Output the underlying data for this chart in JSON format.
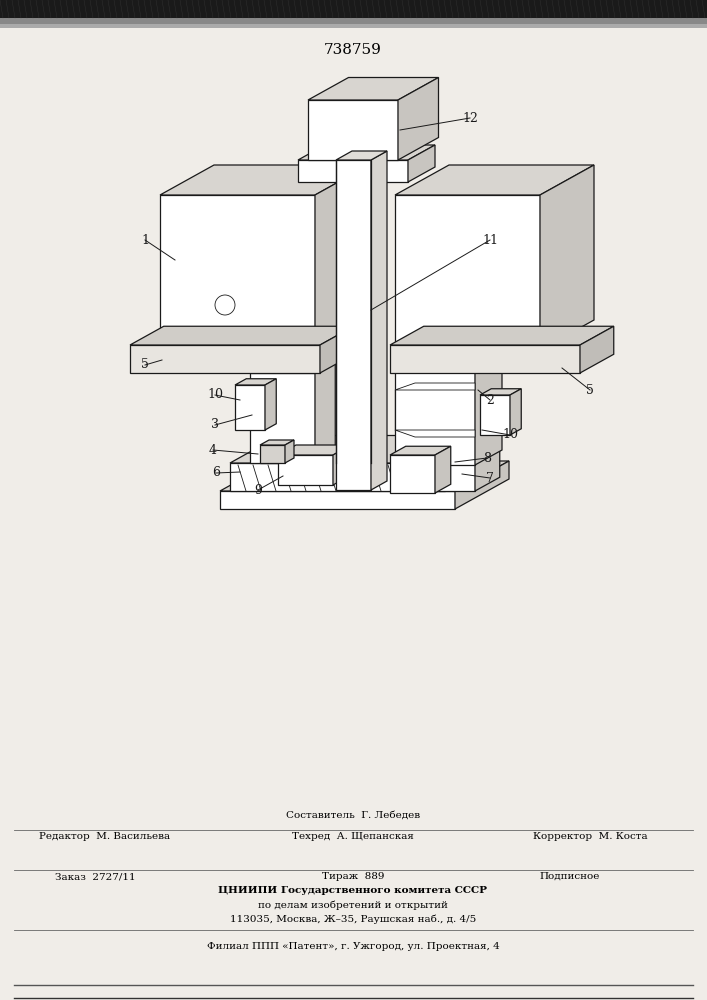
{
  "patent_number": "738759",
  "bg_color": "#f0ede8",
  "paper_color": "#f5f2ed",
  "line_color": "#1a1a1a",
  "fill_color": "#ffffff",
  "fill_light": "#e8e5e0",
  "footer": {
    "sostavitel": "Составитель  Г. Лебедев",
    "redaktor": "Редактор  М. Васильева",
    "tekhred": "Техред  А. Щепанская",
    "korrektor": "Корректор  М. Коста",
    "zakaz": "Заказ  2727/11",
    "tirazh": "Тираж  889",
    "podpisnoe": "Подписное",
    "tsnipi_line1": "ЦНИИПИ Государственного комитета СССР",
    "tsnipi_line2": "по делам изобретений и открытий",
    "tsnipi_line3": "113035, Москва, Ж–35, Раушская наб., д. 4/5",
    "filial": "Филиал ППП «Патент», г. Ужгород, ул. Проектная, 4"
  }
}
